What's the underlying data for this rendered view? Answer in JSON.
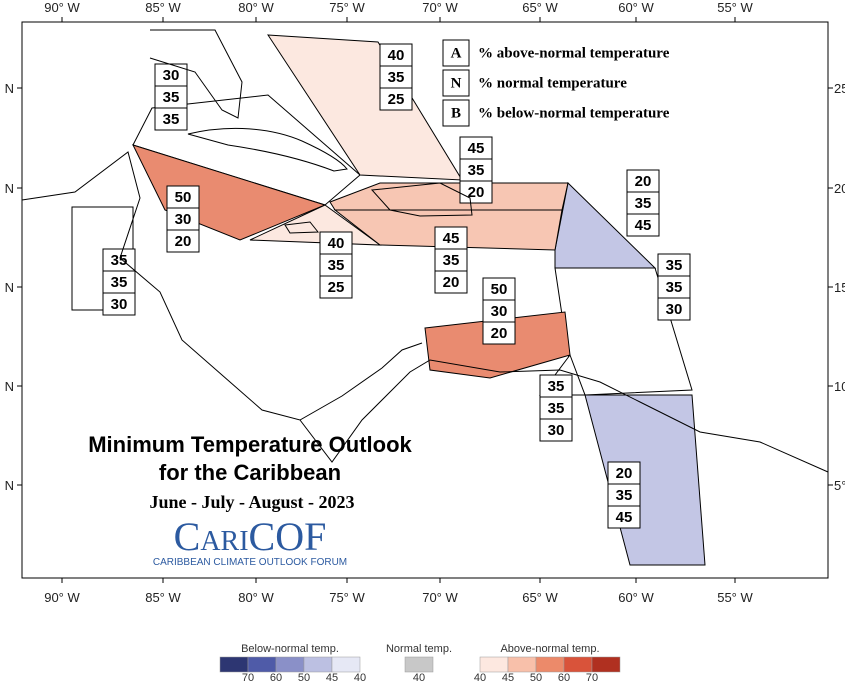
{
  "map": {
    "lon_labels": [
      "90° W",
      "85° W",
      "80° W",
      "75° W",
      "70° W",
      "65° W",
      "60° W",
      "55° W"
    ],
    "lat_labels_left": [
      "N",
      "N",
      "N",
      "N",
      "N"
    ],
    "lat_labels_right": [
      "25",
      "20",
      "15",
      "10",
      "5°"
    ]
  },
  "legend": {
    "rows": [
      {
        "key": "A",
        "text": "% above-normal temperature"
      },
      {
        "key": "N",
        "text": "% normal temperature"
      },
      {
        "key": "B",
        "text": "% below-normal temperature"
      }
    ]
  },
  "title": {
    "line1": "Minimum Temperature Outlook",
    "line2": "for the Caribbean",
    "season": "June - July - August - 2023",
    "logo": "CariCOF",
    "logo_sub": "CARIBBEAN CLIMATE OUTLOOK FORUM"
  },
  "regions": [
    {
      "values": [
        30,
        35,
        35
      ],
      "color": "#ffffff"
    },
    {
      "values": [
        40,
        35,
        25
      ],
      "color": "#fce8e0"
    },
    {
      "values": [
        50,
        30,
        20
      ],
      "color": "#e98b70"
    },
    {
      "values": [
        45,
        35,
        20
      ],
      "color": "#f7c6b3"
    },
    {
      "values": [
        20,
        35,
        45
      ],
      "color": "#c3c6e5"
    },
    {
      "values": [
        40,
        35,
        25
      ],
      "color": "#fce8e0"
    },
    {
      "values": [
        45,
        35,
        20
      ],
      "color": "#f7c6b3"
    },
    {
      "values": [
        35,
        35,
        30
      ],
      "color": "#ffffff"
    },
    {
      "values": [
        35,
        35,
        30
      ],
      "color": "#ffffff"
    },
    {
      "values": [
        50,
        30,
        20
      ],
      "color": "#e98b70"
    },
    {
      "values": [
        35,
        35,
        30
      ],
      "color": "#ffffff"
    },
    {
      "values": [
        20,
        35,
        45
      ],
      "color": "#c3c6e5"
    }
  ],
  "color_scale": {
    "below": {
      "label": "Below-normal temp.",
      "colors": [
        "#2d3672",
        "#4f5ba8",
        "#8a90c8",
        "#bcc0e2",
        "#e6e8f5"
      ],
      "ticks": [
        70,
        60,
        50,
        45,
        40
      ]
    },
    "normal": {
      "label": "Normal temp.",
      "colors": [
        "#c8c8c8"
      ],
      "ticks": [
        40
      ]
    },
    "above": {
      "label": "Above-normal temp.",
      "colors": [
        "#fde8e0",
        "#f8c0aa",
        "#ec8a6a",
        "#d9533a",
        "#b03020"
      ],
      "ticks": [
        40,
        45,
        50,
        60,
        70
      ]
    }
  }
}
